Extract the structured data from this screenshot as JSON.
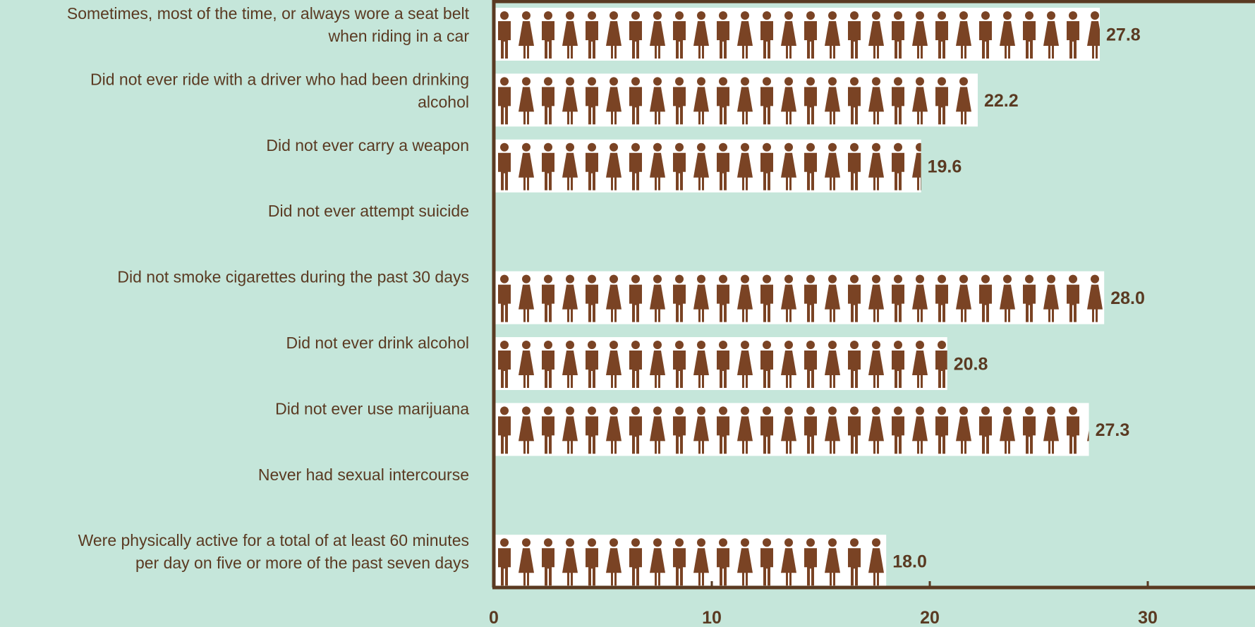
{
  "chart_data": {
    "type": "bar",
    "orientation": "horizontal",
    "title": "",
    "xlabel": "",
    "ylabel": "",
    "xlim": [
      0,
      35
    ],
    "x_ticks": [
      0,
      10,
      20,
      30
    ],
    "grid": false,
    "categories": [
      [
        "Sometimes, most of the time, or always wore a seat belt",
        "when riding in a car"
      ],
      [
        "Did not ever ride with a driver who had been drinking",
        "alcohol"
      ],
      [
        "Did not ever carry a weapon"
      ],
      [
        "Did not ever attempt suicide"
      ],
      [
        "Did not smoke cigarettes during the past 30 days"
      ],
      [
        "Did not ever drink alcohol"
      ],
      [
        "Did not ever use marijuana"
      ],
      [
        "Never had sexual intercourse"
      ],
      [
        "Were physically active for a total of at least 60 minutes",
        "per day on five or more of the past seven days"
      ]
    ],
    "values": [
      27.8,
      22.2,
      19.6,
      null,
      28.0,
      20.8,
      27.3,
      null,
      18.0
    ],
    "value_labels": [
      "27.8",
      "22.2",
      "19.6",
      "",
      "28.0",
      "20.8",
      "27.3",
      "",
      "18.0"
    ],
    "bar_style": "pictogram (alternating male/female figures)",
    "colors": {
      "background": "#c5e6da",
      "bar_background": "#ffffff",
      "figure": "#7a4324",
      "text": "#5a3a22",
      "axis": "#5a3a22"
    }
  }
}
